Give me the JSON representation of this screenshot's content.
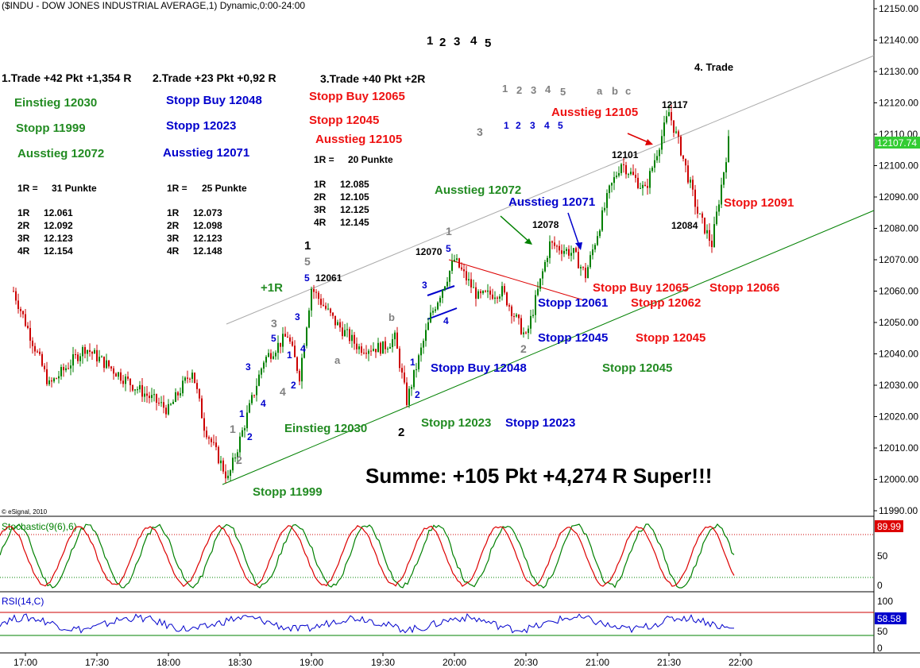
{
  "header": {
    "title": "($INDU - DOW JONES INDUSTRIAL AVERAGE,1) Dynamic,0:00-24:00"
  },
  "colors": {
    "up": "#008000",
    "down": "#cc0000",
    "blue": "#0000cc",
    "gray": "#808080",
    "badge_green": "#33cc33",
    "badge_red": "#dd0000",
    "badge_blue": "#0000cc"
  },
  "copyright": "© eSignal, 2010",
  "main_chart": {
    "y_ticks": [
      "12150.00",
      "12140.00",
      "12130.00",
      "12120.00",
      "12110.00",
      "12100.00",
      "12090.00",
      "12080.00",
      "12070.00",
      "12060.00",
      "12050.00",
      "12040.00",
      "12030.00",
      "12020.00",
      "12010.00",
      "12000.00",
      "11990.00"
    ],
    "last_price": "12107.74"
  },
  "stochastic": {
    "label": "Stochastic(9(6),6)",
    "value": "89.99",
    "ticks": [
      "100",
      "50",
      "0"
    ]
  },
  "rsi": {
    "label": "RSI(14,C)",
    "value": "58.58",
    "ticks": [
      "100",
      "50",
      "0"
    ]
  },
  "x_ticks": [
    "17:00",
    "17:30",
    "18:00",
    "18:30",
    "19:00",
    "19:30",
    "20:00",
    "20:30",
    "21:00",
    "21:30",
    "22:00"
  ],
  "annotations": {
    "top_numbers": [
      "1",
      "2",
      "3",
      "4",
      "5"
    ],
    "trade1": {
      "title": "1.Trade +42 Pkt +1,354 R",
      "einstieg": "Einstieg 12030",
      "stopp": "Stopp 11999",
      "ausstieg": "Ausstieg 12072",
      "r_line": "1R =",
      "r_value": "31 Punkte",
      "levels": [
        [
          "1R",
          "12.061"
        ],
        [
          "2R",
          "12.092"
        ],
        [
          "3R",
          "12.123"
        ],
        [
          "4R",
          "12.154"
        ]
      ]
    },
    "trade2": {
      "title": "2.Trade +23 Pkt +0,92 R",
      "stopp_buy": "Stopp Buy 12048",
      "stopp": "Stopp 12023",
      "ausstieg": "Ausstieg 12071",
      "r_line": "1R =",
      "r_value": "25 Punkte",
      "levels": [
        [
          "1R",
          "12.073"
        ],
        [
          "2R",
          "12.098"
        ],
        [
          "3R",
          "12.123"
        ],
        [
          "4R",
          "12.148"
        ]
      ]
    },
    "trade3": {
      "title": "3.Trade +40 Pkt +2R",
      "stopp_buy": "Stopp Buy 12065",
      "stopp": "Stopp 12045",
      "ausstieg": "Ausstieg 12105",
      "r_line": "1R =",
      "r_value": "20 Punkte",
      "levels": [
        [
          "1R",
          "12.085"
        ],
        [
          "2R",
          "12.105"
        ],
        [
          "3R",
          "12.125"
        ],
        [
          "4R",
          "12.145"
        ]
      ]
    },
    "trade4": "4. Trade",
    "summe": "Summe: +105 Pkt +4,274 R Super!!!",
    "plus1r": "+1R",
    "chart_texts": {
      "c12061": "12061",
      "c12070": "12070",
      "c12078": "12078",
      "c12101": "12101",
      "c12117": "12117",
      "c12084": "12084",
      "ausstieg12072": "Ausstieg 12072",
      "ausstieg12071": "Ausstieg 12071",
      "ausstieg12105": "Ausstieg 12105",
      "einstieg12030": "Einstieg 12030",
      "stopp11999": "Stopp 11999",
      "stopp12023g": "Stopp 12023",
      "stopp12023b": "Stopp 12023",
      "stoppbuy12048": "Stopp Buy 12048",
      "stopp12061": "Stopp 12061",
      "stopp12045b": "Stopp 12045",
      "stoppbuy12065": "Stopp Buy 12065",
      "stopp12062": "Stopp 12062",
      "stopp12045r": "Stopp 12045",
      "stopp12045g": "Stopp 12045",
      "stopp12091": "Stopp 12091",
      "stopp12066": "Stopp 12066"
    }
  },
  "chart_data": {
    "type": "candlestick",
    "title": "($INDU - DOW JONES INDUSTRIAL AVERAGE,1) Dynamic,0:00-24:00",
    "x_axis": [
      "17:00",
      "17:30",
      "18:00",
      "18:30",
      "19:00",
      "19:30",
      "20:00",
      "20:30",
      "21:00",
      "21:30",
      "22:00"
    ],
    "ylim": [
      11990,
      12150
    ],
    "key_points": [
      {
        "time": "16:55",
        "price": 12060
      },
      {
        "time": "17:10",
        "price": 12030
      },
      {
        "time": "17:25",
        "price": 12042
      },
      {
        "time": "17:45",
        "price": 12030
      },
      {
        "time": "18:00",
        "price": 12022
      },
      {
        "time": "18:10",
        "price": 12035
      },
      {
        "time": "18:15",
        "price": 12017
      },
      {
        "time": "18:25",
        "price": 12000
      },
      {
        "time": "18:40",
        "price": 12038
      },
      {
        "time": "18:50",
        "price": 12046
      },
      {
        "time": "18:55",
        "price": 12033
      },
      {
        "time": "19:00",
        "price": 12061
      },
      {
        "time": "19:10",
        "price": 12050
      },
      {
        "time": "19:20",
        "price": 12042
      },
      {
        "time": "19:30",
        "price": 12042
      },
      {
        "time": "19:35",
        "price": 12045
      },
      {
        "time": "19:40",
        "price": 12025
      },
      {
        "time": "19:50",
        "price": 12052
      },
      {
        "time": "20:00",
        "price": 12070
      },
      {
        "time": "20:10",
        "price": 12058
      },
      {
        "time": "20:20",
        "price": 12060
      },
      {
        "time": "20:30",
        "price": 12045
      },
      {
        "time": "20:40",
        "price": 12075
      },
      {
        "time": "20:50",
        "price": 12072
      },
      {
        "time": "20:55",
        "price": 12065
      },
      {
        "time": "21:05",
        "price": 12092
      },
      {
        "time": "21:10",
        "price": 12101
      },
      {
        "time": "21:20",
        "price": 12092
      },
      {
        "time": "21:30",
        "price": 12117
      },
      {
        "time": "21:35",
        "price": 12105
      },
      {
        "time": "21:42",
        "price": 12085
      },
      {
        "time": "21:48",
        "price": 12075
      },
      {
        "time": "21:55",
        "price": 12107.74
      }
    ],
    "last_price": 12107.74,
    "indicators": [
      {
        "name": "Stochastic(9(6),6)",
        "last": 89.99,
        "range": [
          0,
          100
        ],
        "levels": [
          80,
          20
        ]
      },
      {
        "name": "RSI(14,C)",
        "last": 58.58,
        "range": [
          0,
          100
        ],
        "levels": [
          70,
          30
        ]
      }
    ],
    "trendlines": [
      "upper gray channel line",
      "lower green channel line",
      "red resistance line"
    ],
    "grid": false
  }
}
